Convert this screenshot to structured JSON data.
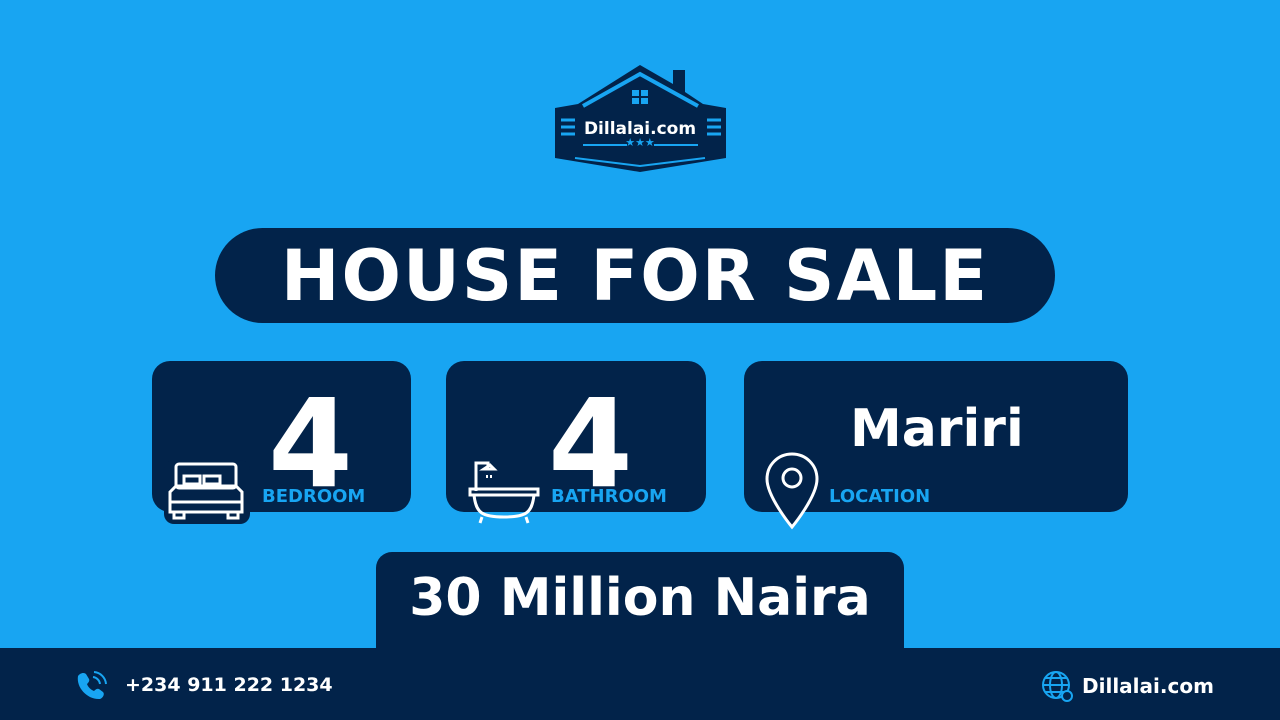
{
  "logo": {
    "text": "Dillalai.com"
  },
  "headline": "HOUSE FOR SALE",
  "features": [
    {
      "value": "4",
      "label": "BEDROOM",
      "icon": "bed-icon"
    },
    {
      "value": "4",
      "label": "BATHROOM",
      "icon": "bathtub-icon"
    },
    {
      "value": "Mariri",
      "label": "LOCATION",
      "icon": "location-pin-icon"
    }
  ],
  "price": "30 Million Naira",
  "footer": {
    "phone": "+234 911 222 1234",
    "website": "Dillalai.com"
  },
  "colors": {
    "background": "#18a5f2",
    "navy": "#02234a",
    "accent": "#18a5f2"
  }
}
